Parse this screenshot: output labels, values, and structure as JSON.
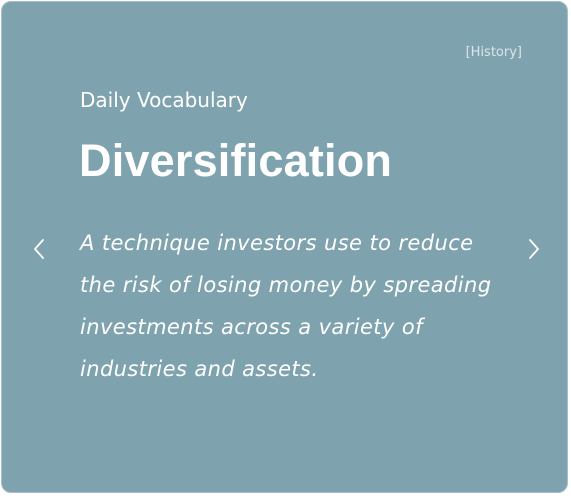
{
  "card": {
    "category_link": "[History]",
    "subtitle": "Daily Vocabulary",
    "word": "Diversification",
    "definition": "A technique investors use to reduce the risk of losing money by spreading investments across a variety of industries and assets."
  },
  "navigation": {
    "prev_icon": "chevron-left-icon",
    "next_icon": "chevron-right-icon"
  },
  "colors": {
    "card_background": "#7fa3ae",
    "text": "#ffffff"
  }
}
